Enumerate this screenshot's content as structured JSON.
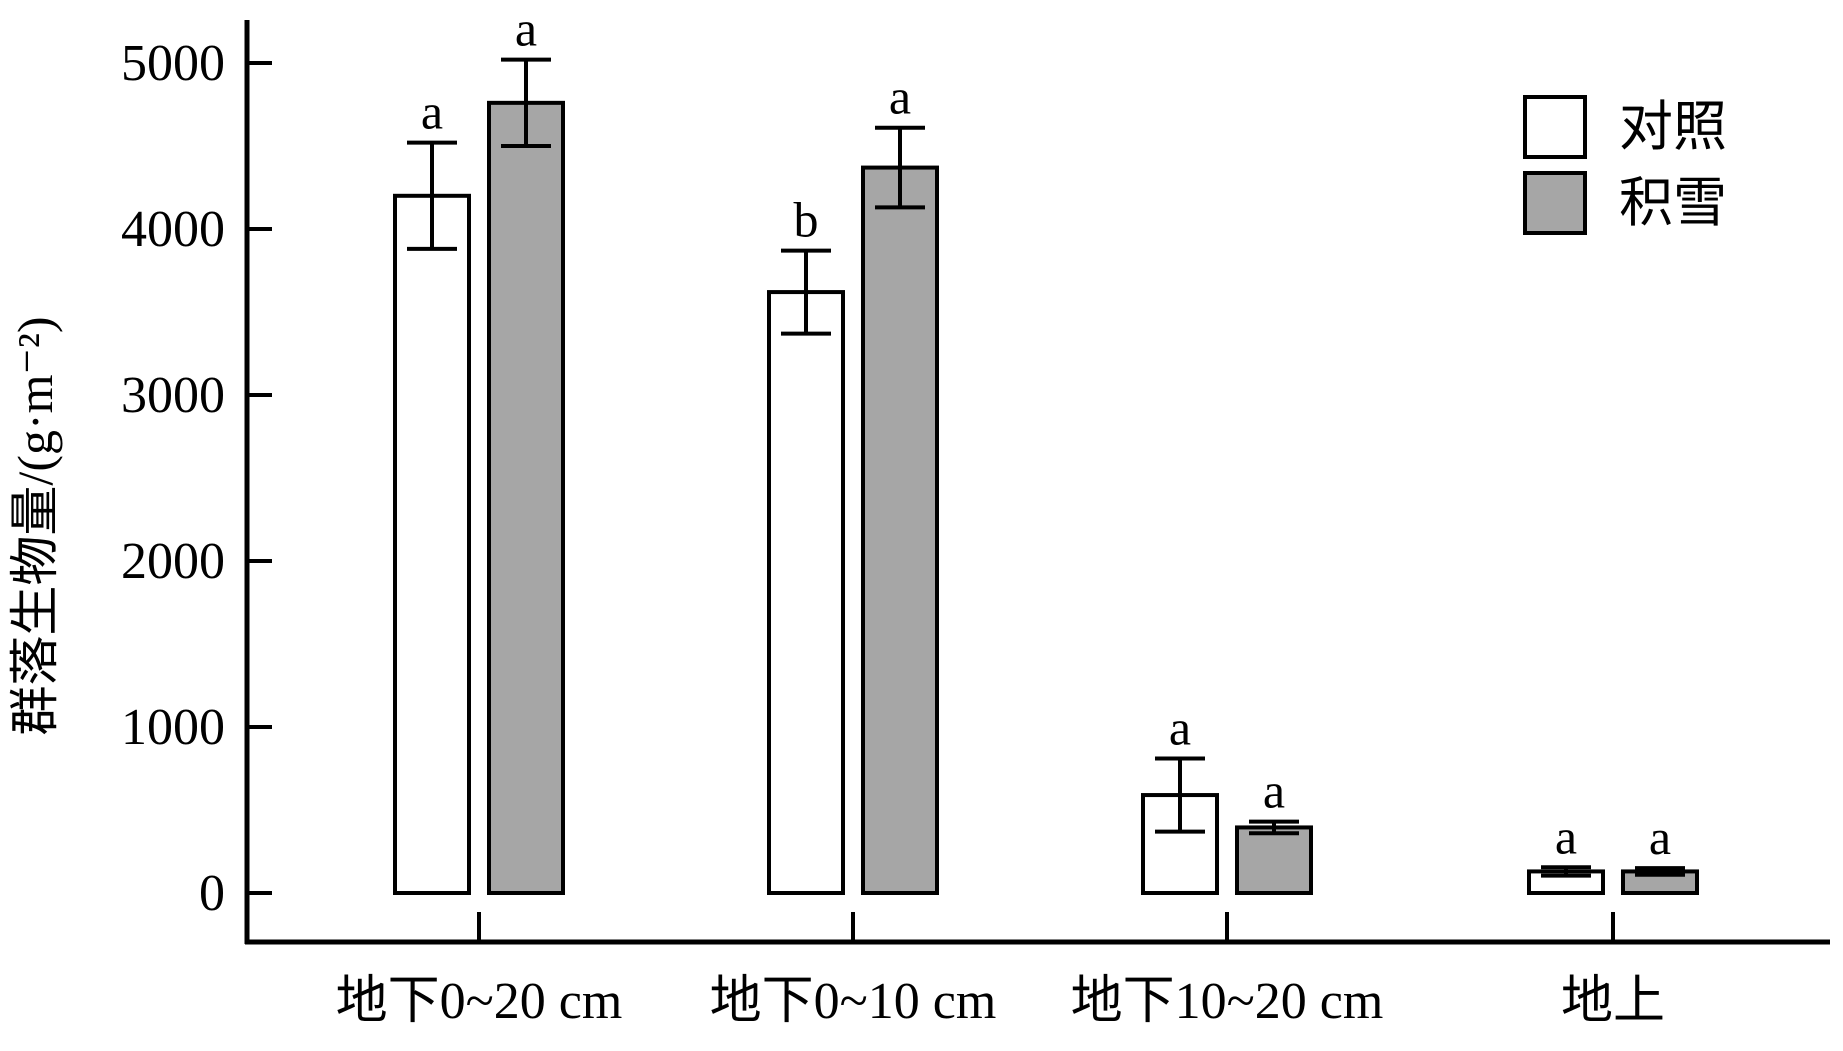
{
  "chart_data": {
    "type": "bar",
    "title": "",
    "xlabel": "",
    "ylabel": "群落生物量/(g·m⁻²)",
    "ylim": [
      0,
      5000
    ],
    "yticks": [
      "0",
      "1000",
      "2000",
      "3000",
      "4000",
      "5000"
    ],
    "grid": false,
    "legend_position": "top-right",
    "categories": [
      "地下0~20 cm",
      "地下0~10 cm",
      "地下10~20 cm",
      "地上"
    ],
    "series": [
      {
        "name": "对照",
        "color": "#ffffff",
        "values": [
          4200,
          3620,
          590,
          130
        ],
        "errors": [
          320,
          250,
          220,
          25
        ],
        "sig": [
          "a",
          "b",
          "a",
          "a"
        ]
      },
      {
        "name": "积雪",
        "color": "#a6a6a6",
        "values": [
          4760,
          4370,
          395,
          130
        ],
        "errors": [
          260,
          240,
          35,
          20
        ],
        "sig": [
          "a",
          "a",
          "a",
          "a"
        ]
      }
    ]
  }
}
